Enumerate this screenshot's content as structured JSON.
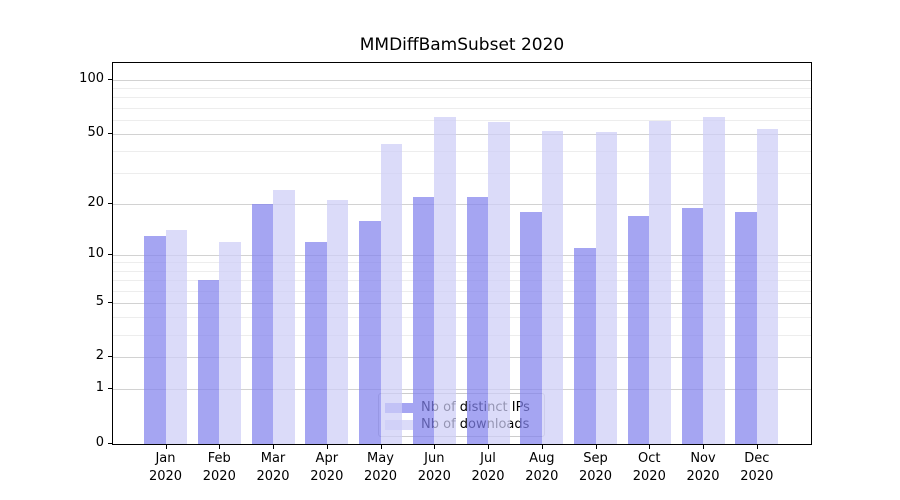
{
  "chart_data": {
    "type": "bar",
    "title": "MMDiffBamSubset 2020",
    "categories": [
      "Jan",
      "Feb",
      "Mar",
      "Apr",
      "May",
      "Jun",
      "Jul",
      "Aug",
      "Sep",
      "Oct",
      "Nov",
      "Dec"
    ],
    "year": "2020",
    "series": [
      {
        "name": "Nb of distinct IPs",
        "values": [
          13,
          7,
          20,
          12,
          16,
          22,
          22,
          18,
          11,
          17,
          19,
          18
        ],
        "color": "#8282ed",
        "alpha": 0.72
      },
      {
        "name": "Nb of downloads",
        "values": [
          14,
          12,
          24,
          21,
          44,
          62,
          58,
          52,
          51,
          59,
          62,
          53
        ],
        "color": "#cdcdf7",
        "alpha": 0.72
      }
    ],
    "yscale": "log1p",
    "yticks": [
      0,
      1,
      2,
      5,
      10,
      20,
      50,
      100
    ],
    "yticks_minor": [
      3,
      4,
      6,
      7,
      8,
      9,
      30,
      40,
      60,
      70,
      80,
      90
    ],
    "ylim": [
      0,
      124
    ],
    "xlabel": "",
    "ylabel": "",
    "grid": true,
    "legend_position": "lower-center",
    "colors": {
      "grid_major": "#d2d2d2",
      "grid_minor": "#ededed",
      "spine": "#000000",
      "text": "#000000",
      "background": "#ffffff"
    }
  }
}
